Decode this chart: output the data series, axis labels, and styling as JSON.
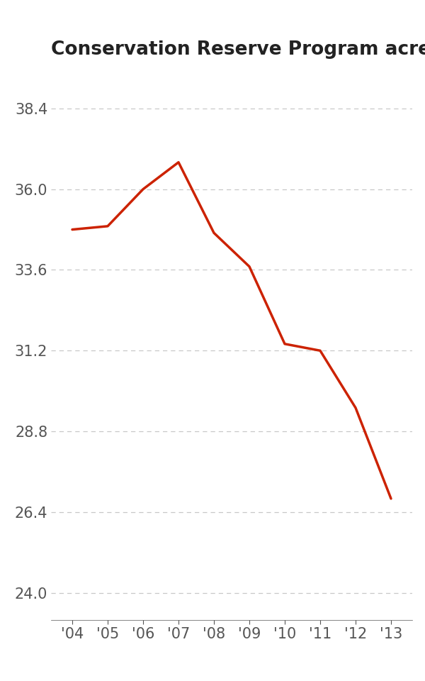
{
  "title": "Conservation Reserve Program acres (billions)",
  "years": [
    2004,
    2005,
    2006,
    2007,
    2008,
    2009,
    2010,
    2011,
    2012,
    2013
  ],
  "x_labels": [
    "'04",
    "'05",
    "'06",
    "'07",
    "'08",
    "'09",
    "'10",
    "'11",
    "'12",
    "'13"
  ],
  "values": [
    34.8,
    34.9,
    36.0,
    36.8,
    34.7,
    33.7,
    31.4,
    31.2,
    29.5,
    26.8
  ],
  "line_color": "#cc2200",
  "line_width": 2.5,
  "yticks": [
    24.0,
    26.4,
    28.8,
    31.2,
    33.6,
    36.0,
    38.4
  ],
  "ylim": [
    23.2,
    39.6
  ],
  "xlim": [
    2003.4,
    2013.6
  ],
  "grid_color": "#c8c8c8",
  "title_color": "#222222",
  "tick_color": "#555555",
  "background_color": "#ffffff",
  "title_fontsize": 19,
  "tick_fontsize": 15
}
